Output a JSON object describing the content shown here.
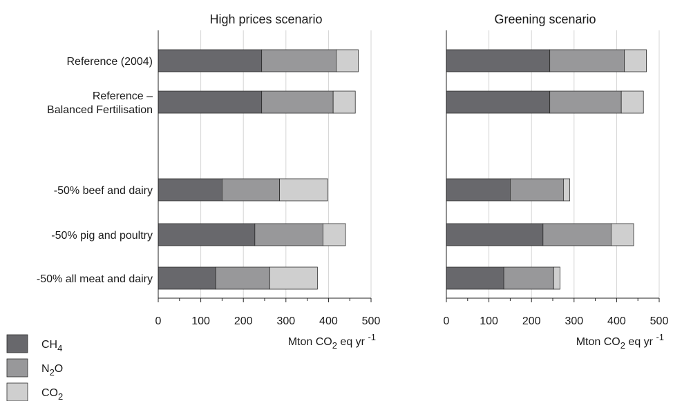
{
  "chart_data": [
    {
      "type": "bar",
      "orientation": "horizontal",
      "stacked": true,
      "title": "High prices scenario",
      "categories": [
        "Reference (2004)",
        "Reference –\nBalanced Fertilisation",
        "",
        "-50% beef and dairy",
        "-50% pig and poultry",
        "-50% all meat and dairy"
      ],
      "series": [
        {
          "name": "CH4",
          "values": [
            243,
            243,
            null,
            150,
            227,
            135
          ]
        },
        {
          "name": "N2O",
          "values": [
            175,
            168,
            null,
            135,
            160,
            127
          ]
        },
        {
          "name": "CO2",
          "values": [
            52,
            52,
            null,
            113,
            53,
            112
          ]
        }
      ],
      "xlim": [
        0,
        500
      ],
      "xticks": [
        0,
        100,
        200,
        300,
        400,
        500
      ],
      "xlabel": "Mton CO2 eq yr -1",
      "grid": true
    },
    {
      "type": "bar",
      "orientation": "horizontal",
      "stacked": true,
      "title": "Greening scenario",
      "categories": [
        "Reference (2004)",
        "Reference –\nBalanced Fertilisation",
        "",
        "-50% beef and dairy",
        "-50% pig and poultry",
        "-50% all meat and dairy"
      ],
      "series": [
        {
          "name": "CH4",
          "values": [
            243,
            243,
            null,
            150,
            227,
            135
          ]
        },
        {
          "name": "N2O",
          "values": [
            175,
            168,
            null,
            125,
            160,
            117
          ]
        },
        {
          "name": "CO2",
          "values": [
            52,
            52,
            null,
            15,
            53,
            15
          ]
        }
      ],
      "xlim": [
        0,
        500
      ],
      "xticks": [
        0,
        100,
        200,
        300,
        400,
        500
      ],
      "xlabel": "Mton CO2 eq yr -1",
      "grid": true
    }
  ],
  "legend": {
    "placement": "bottom-left",
    "items": [
      {
        "label": "CH",
        "sub": "4",
        "color": "#68686c"
      },
      {
        "label": "N",
        "sub": "2",
        "suffix": "O",
        "color": "#98989a"
      },
      {
        "label": "CO",
        "sub": "2",
        "color": "#cfcfcf"
      }
    ]
  },
  "colors": {
    "CH4": "#68686c",
    "N2O": "#98989a",
    "CO2": "#cfcfcf",
    "grid": "#d4d4d4",
    "axis": "#222222"
  }
}
